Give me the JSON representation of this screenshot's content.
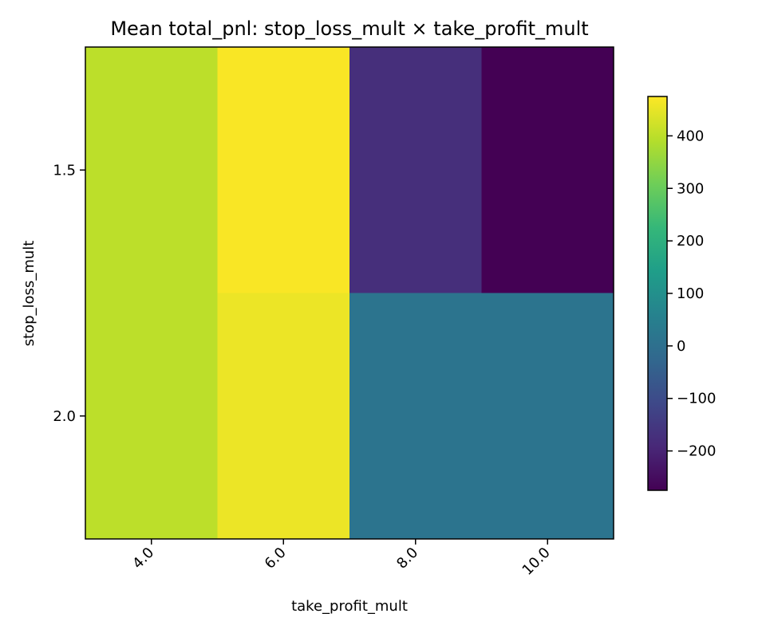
{
  "chart_data": {
    "type": "heatmap",
    "title": "Mean total_pnl: stop_loss_mult × take_profit_mult",
    "xlabel": "take_profit_mult",
    "ylabel": "stop_loss_mult",
    "x_categories": [
      "4.0",
      "6.0",
      "8.0",
      "10.0"
    ],
    "y_categories": [
      "1.5",
      "2.0"
    ],
    "values": [
      [
        400,
        470,
        -175,
        -275
      ],
      [
        400,
        455,
        15,
        15
      ]
    ],
    "colorbar": {
      "min": -275,
      "max": 475,
      "ticks": [
        {
          "value": 400,
          "label": "400"
        },
        {
          "value": 300,
          "label": "300"
        },
        {
          "value": 200,
          "label": "200"
        },
        {
          "value": 100,
          "label": "100"
        },
        {
          "value": 0,
          "label": "0"
        },
        {
          "value": -100,
          "label": "−100"
        },
        {
          "value": -200,
          "label": "−200"
        }
      ]
    },
    "colormap": "viridis"
  }
}
